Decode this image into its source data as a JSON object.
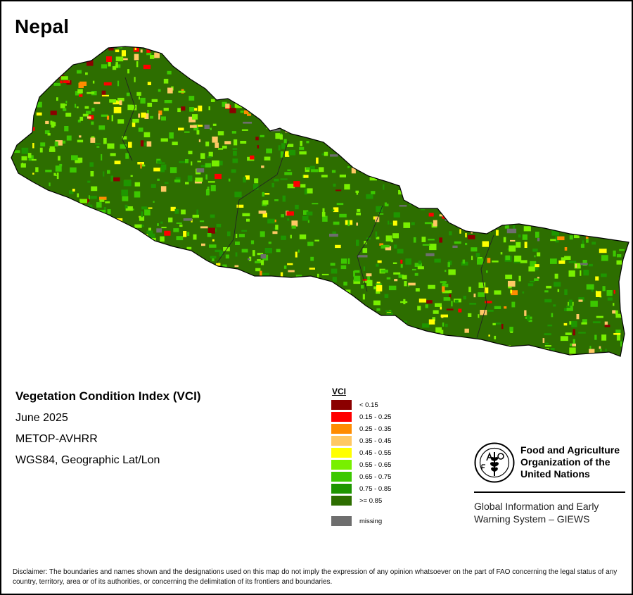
{
  "map": {
    "country": "Nepal",
    "index_title": "Vegetation Condition Index (VCI)",
    "date": "June 2025",
    "sensor": "METOP-AVHRR",
    "projection": "WGS84, Geographic Lat/Lon"
  },
  "legend": {
    "title": "VCI",
    "classes": [
      {
        "label": "< 0.15",
        "color": "#8b0000"
      },
      {
        "label": "0.15 - 0.25",
        "color": "#ff0000"
      },
      {
        "label": "0.25 - 0.35",
        "color": "#ff8c00"
      },
      {
        "label": "0.35 - 0.45",
        "color": "#ffc864"
      },
      {
        "label": "0.45 - 0.55",
        "color": "#ffff00"
      },
      {
        "label": "0.55 - 0.65",
        "color": "#78f000"
      },
      {
        "label": "0.65 - 0.75",
        "color": "#3cc800"
      },
      {
        "label": "0.75 - 0.85",
        "color": "#1e9600"
      },
      {
        "label": ">= 0.85",
        "color": "#2d6e00"
      }
    ],
    "missing": {
      "label": "missing",
      "color": "#6e6e6e"
    }
  },
  "organization": {
    "logo_icon": "fao-logo-icon",
    "name_lines": [
      "Food and Agriculture",
      "Organization of the",
      "United Nations"
    ],
    "system_lines": [
      "Global Information and Early",
      "Warning System – GIEWS"
    ]
  },
  "disclaimer": "Disclaimer: The boundaries and names shown and the designations used on this map do not imply the expression of any opinion whatsoever on the part of FAO concerning the legal status of any country, territory, area or of its authorities, or concerning the delimitation of its frontiers and boundaries."
}
